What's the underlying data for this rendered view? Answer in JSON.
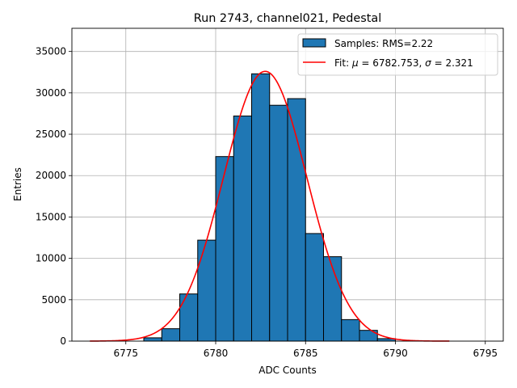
{
  "chart_data": {
    "type": "bar",
    "title": "Run 2743, channel021, Pedestal",
    "xlabel": "ADC Counts",
    "ylabel": "Entries",
    "xlim": [
      6772,
      6796
    ],
    "ylim": [
      0,
      37800
    ],
    "xticks": [
      6775,
      6780,
      6785,
      6790,
      6795
    ],
    "yticks": [
      0,
      5000,
      10000,
      15000,
      20000,
      25000,
      30000,
      35000
    ],
    "grid": true,
    "legend_position": "top-right",
    "bins": [
      {
        "x0": 6776,
        "x1": 6777,
        "value": 400
      },
      {
        "x0": 6777,
        "x1": 6778,
        "value": 1500
      },
      {
        "x0": 6778,
        "x1": 6779,
        "value": 5700
      },
      {
        "x0": 6779,
        "x1": 6780,
        "value": 12200
      },
      {
        "x0": 6780,
        "x1": 6781,
        "value": 22300
      },
      {
        "x0": 6781,
        "x1": 6782,
        "value": 27200
      },
      {
        "x0": 6782,
        "x1": 6783,
        "value": 32300
      },
      {
        "x0": 6783,
        "x1": 6784,
        "value": 28500
      },
      {
        "x0": 6784,
        "x1": 6785,
        "value": 29300
      },
      {
        "x0": 6785,
        "x1": 6786,
        "value": 13000
      },
      {
        "x0": 6786,
        "x1": 6787,
        "value": 10200
      },
      {
        "x0": 6787,
        "x1": 6788,
        "value": 2600
      },
      {
        "x0": 6788,
        "x1": 6789,
        "value": 1300
      },
      {
        "x0": 6789,
        "x1": 6790,
        "value": 300
      }
    ],
    "fit": {
      "mu": 6782.753,
      "sigma": 2.321,
      "amplitude": 32600,
      "x_range": [
        6773,
        6793
      ]
    },
    "series": [
      {
        "name": "Samples: RMS=2.22",
        "kind": "histogram"
      },
      {
        "name_prefix": "Fit: ",
        "name_mu_symbol": "μ",
        "name_mu_value": " = 6782.753, ",
        "name_sigma_symbol": "σ",
        "name_sigma_value": " = 2.321",
        "kind": "line"
      }
    ],
    "colors": {
      "bar_fill": "#1f77b4",
      "bar_edge": "#000000",
      "fit_line": "#ff0000",
      "grid": "#b0b0b0"
    }
  }
}
